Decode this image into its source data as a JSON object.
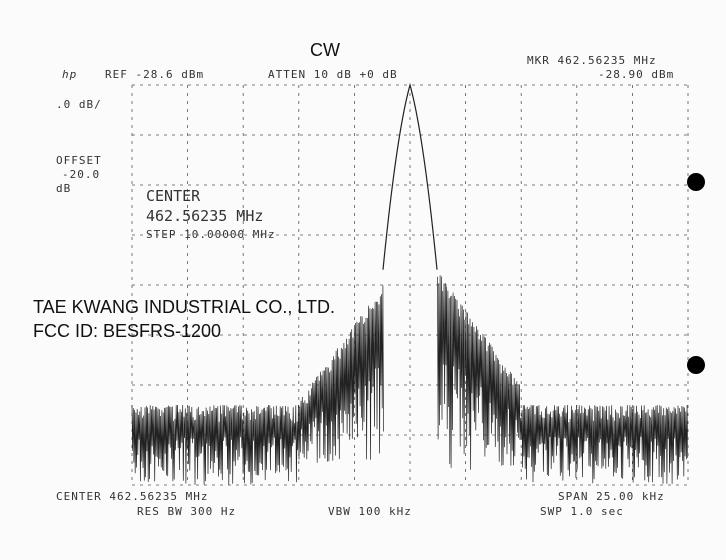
{
  "title": "CW",
  "logo": "hp",
  "header": {
    "ref": "REF -28.6 dBm",
    "atten": "ATTEN 10 dB +0 dB",
    "marker_freq": "MKR 462.56235 MHz",
    "marker_level": "-28.90 dBm"
  },
  "side": {
    "scale": ".0 dB/",
    "offset_label": "OFFSET",
    "offset_value": "-20.0",
    "offset_unit": "dB"
  },
  "center_box": {
    "label": "CENTER",
    "freq": "462.56235 MHz",
    "step": "STEP 10.00000 MHz"
  },
  "company": {
    "name": "TAE KWANG INDUSTRIAL CO., LTD.",
    "fcc": "FCC ID:  BESFRS-1200"
  },
  "footer": {
    "center": "CENTER 462.56235 MHz",
    "span": "SPAN 25.00 kHz",
    "res_bw": "RES BW 300 Hz",
    "vbw": "VBW 100 kHz",
    "swp": "SWP 1.0 sec"
  }
}
